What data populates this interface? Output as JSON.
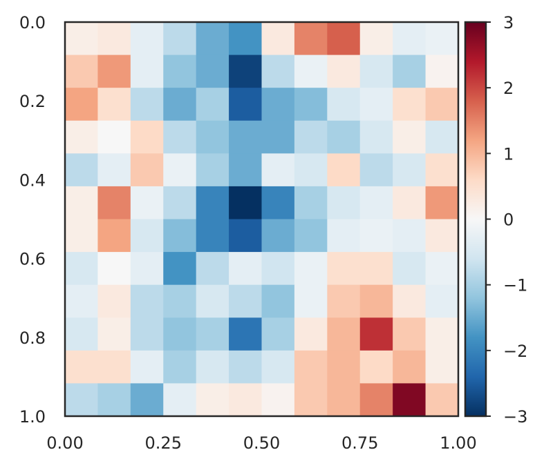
{
  "chart_data": {
    "type": "heatmap",
    "xlim": [
      0,
      1
    ],
    "ylim": [
      0,
      1
    ],
    "xticks": [
      {
        "value": 0,
        "label": "0.00"
      },
      0.25,
      {
        "value": 0.5,
        "label": "0.50"
      },
      0.75,
      {
        "value": 1,
        "label": "1.00"
      }
    ],
    "yticks": [
      {
        "value": 0,
        "label": "0.0"
      },
      0.2,
      0.4,
      0.6,
      0.8,
      {
        "value": 1,
        "label": "1.0"
      }
    ],
    "zlim": [
      -3,
      3
    ],
    "zticks": [
      {
        "value": -3,
        "label": "−3"
      },
      {
        "value": -2,
        "label": "−2"
      },
      {
        "value": -1,
        "label": "−1"
      },
      0,
      1,
      2,
      3
    ],
    "colormap": [
      "#053061",
      "#2166ac",
      "#4393c3",
      "#92c5de",
      "#d1e5f0",
      "#f7f7f7",
      "#fddbc7",
      "#f4a582",
      "#d6604d",
      "#b2182b",
      "#67001f"
    ],
    "z": [
      [
        0.2,
        0.3,
        -0.3,
        -0.8,
        -1.5,
        -1.8,
        0.3,
        1.5,
        1.8,
        0.2,
        -0.3,
        -0.2
      ],
      [
        0.8,
        1.3,
        -0.3,
        -1.2,
        -1.5,
        -2.8,
        -0.8,
        -0.2,
        0.3,
        -0.5,
        -1.0,
        0.1
      ],
      [
        1.2,
        0.5,
        -0.8,
        -1.5,
        -1.0,
        -2.5,
        -1.5,
        -1.3,
        -0.5,
        -0.3,
        0.5,
        0.8
      ],
      [
        0.2,
        0,
        0.6,
        -0.8,
        -1.2,
        -1.5,
        -1.5,
        -0.8,
        -1.0,
        -0.5,
        0.2,
        -0.5
      ],
      [
        -0.8,
        -0.3,
        0.8,
        -0.2,
        -1.0,
        -1.5,
        -0.3,
        -0.5,
        0.6,
        -0.8,
        -0.5,
        0.5
      ],
      [
        0.2,
        1.5,
        -0.2,
        -0.8,
        -2.0,
        -3.0,
        -2.0,
        -1.0,
        -0.5,
        -0.3,
        0.3,
        1.3
      ],
      [
        0.2,
        1.2,
        -0.5,
        -1.3,
        -2.0,
        -2.5,
        -1.5,
        -1.2,
        -0.3,
        -0.2,
        -0.3,
        0.3
      ],
      [
        -0.5,
        0,
        -0.3,
        -1.8,
        -0.8,
        -0.3,
        -0.6,
        -0.2,
        0.5,
        0.5,
        -0.5,
        -0.2
      ],
      [
        -0.3,
        0.3,
        -0.8,
        -1.0,
        -0.5,
        -0.8,
        -1.2,
        -0.2,
        0.8,
        1.0,
        0.3,
        -0.3
      ],
      [
        -0.5,
        0.2,
        -0.8,
        -1.2,
        -1.0,
        -2.2,
        -1.0,
        0.3,
        1.0,
        2.2,
        0.8,
        0.2
      ],
      [
        0.5,
        0.5,
        -0.3,
        -1.0,
        -0.5,
        -0.8,
        -0.5,
        0.8,
        1.0,
        0.6,
        1.0,
        0.2
      ],
      [
        -0.8,
        -1.0,
        -1.5,
        -0.3,
        0.2,
        0.3,
        0.1,
        0.8,
        1.0,
        1.5,
        2.8,
        0.8
      ]
    ]
  }
}
